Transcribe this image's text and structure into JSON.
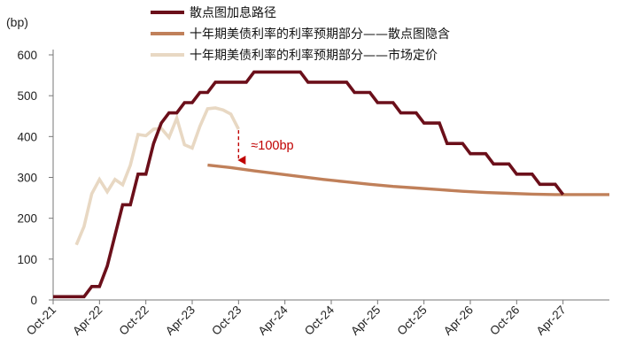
{
  "chart_data": {
    "type": "line",
    "ylabel": "(bp)",
    "ylim": [
      0,
      600
    ],
    "yticks": [
      0,
      100,
      200,
      300,
      400,
      500,
      600
    ],
    "xticks": [
      "Oct-21",
      "Apr-22",
      "Oct-22",
      "Apr-23",
      "Oct-23",
      "Apr-24",
      "Oct-24",
      "Apr-25",
      "Oct-25",
      "Apr-26",
      "Oct-26",
      "Apr-27"
    ],
    "x_axis_start": "2021-10",
    "x_axis_end": "2027-10",
    "grid": false,
    "legend_position": "top",
    "series": [
      {
        "name": "散点图加息路径",
        "color": "#6B0F1A",
        "points": [
          [
            "2021-10",
            8
          ],
          [
            "2022-02",
            8
          ],
          [
            "2022-03",
            33
          ],
          [
            "2022-04",
            33
          ],
          [
            "2022-05",
            83
          ],
          [
            "2022-06",
            158
          ],
          [
            "2022-07",
            233
          ],
          [
            "2022-08",
            233
          ],
          [
            "2022-09",
            308
          ],
          [
            "2022-10",
            308
          ],
          [
            "2022-11",
            383
          ],
          [
            "2022-12",
            433
          ],
          [
            "2023-01",
            458
          ],
          [
            "2023-02",
            458
          ],
          [
            "2023-03",
            483
          ],
          [
            "2023-04",
            483
          ],
          [
            "2023-05",
            508
          ],
          [
            "2023-06",
            508
          ],
          [
            "2023-07",
            533
          ],
          [
            "2023-11",
            533
          ],
          [
            "2023-12",
            558
          ],
          [
            "2024-06",
            558
          ],
          [
            "2024-07",
            533
          ],
          [
            "2024-12",
            533
          ],
          [
            "2025-01",
            508
          ],
          [
            "2025-03",
            508
          ],
          [
            "2025-04",
            483
          ],
          [
            "2025-06",
            483
          ],
          [
            "2025-07",
            458
          ],
          [
            "2025-09",
            458
          ],
          [
            "2025-10",
            433
          ],
          [
            "2025-12",
            433
          ],
          [
            "2026-01",
            383
          ],
          [
            "2026-03",
            383
          ],
          [
            "2026-04",
            358
          ],
          [
            "2026-06",
            358
          ],
          [
            "2026-07",
            333
          ],
          [
            "2026-09",
            333
          ],
          [
            "2026-10",
            308
          ],
          [
            "2026-12",
            308
          ],
          [
            "2027-01",
            283
          ],
          [
            "2027-03",
            283
          ],
          [
            "2027-04",
            258
          ]
        ]
      },
      {
        "name": "十年期美债利率的利率预期部分——散点图隐含",
        "color": "#C0805A",
        "points": [
          [
            "2023-06",
            330
          ],
          [
            "2023-09",
            324
          ],
          [
            "2023-12",
            316
          ],
          [
            "2024-03",
            309
          ],
          [
            "2024-06",
            302
          ],
          [
            "2024-09",
            295
          ],
          [
            "2024-12",
            289
          ],
          [
            "2025-03",
            283
          ],
          [
            "2025-06",
            278
          ],
          [
            "2025-09",
            274
          ],
          [
            "2025-12",
            270
          ],
          [
            "2026-03",
            266
          ],
          [
            "2026-06",
            263
          ],
          [
            "2026-09",
            261
          ],
          [
            "2026-12",
            259
          ],
          [
            "2027-03",
            258
          ],
          [
            "2027-06",
            258
          ],
          [
            "2027-10",
            258
          ]
        ]
      },
      {
        "name": "十年期美债利率的利率预期部分——市场定价",
        "color": "#E8D8C3",
        "points": [
          [
            "2022-01",
            135
          ],
          [
            "2022-02",
            180
          ],
          [
            "2022-03",
            260
          ],
          [
            "2022-04",
            295
          ],
          [
            "2022-05",
            265
          ],
          [
            "2022-06",
            295
          ],
          [
            "2022-07",
            282
          ],
          [
            "2022-08",
            330
          ],
          [
            "2022-09",
            405
          ],
          [
            "2022-10",
            402
          ],
          [
            "2022-11",
            418
          ],
          [
            "2022-12",
            420
          ],
          [
            "2023-01",
            398
          ],
          [
            "2023-02",
            445
          ],
          [
            "2023-03",
            380
          ],
          [
            "2023-04",
            372
          ],
          [
            "2023-05",
            425
          ],
          [
            "2023-06",
            468
          ],
          [
            "2023-07",
            470
          ],
          [
            "2023-08",
            465
          ],
          [
            "2023-09",
            455
          ],
          [
            "2023-10",
            418
          ]
        ]
      }
    ],
    "annotations": [
      {
        "text": "≈100bp",
        "from": [
          "2023-10",
          420
        ],
        "to": [
          "2023-10",
          325
        ],
        "color": "#C00000"
      }
    ]
  }
}
